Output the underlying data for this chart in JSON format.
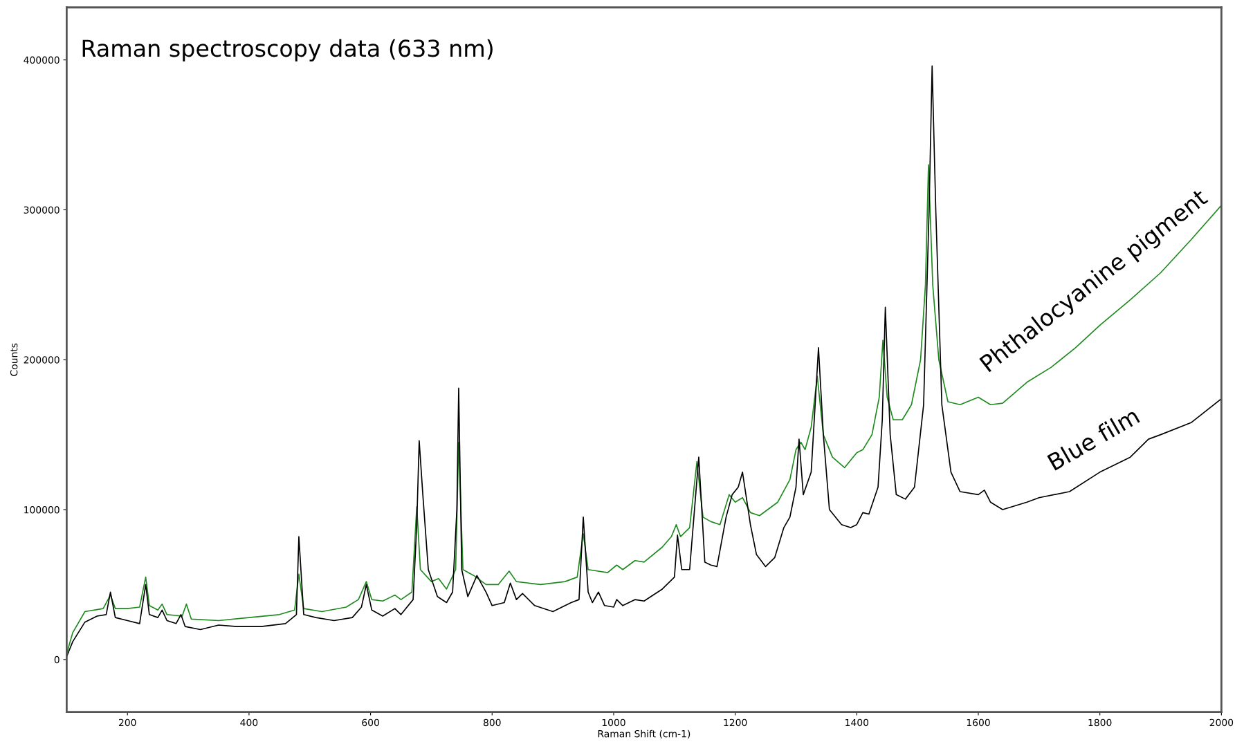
{
  "chart_data": {
    "type": "line",
    "title": "Raman spectroscopy data (633 nm)",
    "xlabel": "Raman Shift (cm-1)",
    "ylabel": "Counts",
    "xlim": [
      100,
      2000
    ],
    "xticks": [
      200,
      400,
      600,
      800,
      1000,
      1200,
      1400,
      1600,
      1800,
      2000
    ],
    "ylim": [
      -35000,
      435000
    ],
    "yticks": [
      0,
      100000,
      200000,
      300000,
      400000
    ],
    "grid": false,
    "legend": false,
    "marker": "none",
    "line_style": "solid",
    "series": [
      {
        "name": "Phthalocyanine pigment",
        "color": "#1f8a1f",
        "x": [
          100,
          110,
          130,
          160,
          172,
          180,
          200,
          220,
          230,
          236,
          250,
          257,
          265,
          290,
          297,
          305,
          350,
          400,
          450,
          475,
          482,
          490,
          520,
          560,
          580,
          593,
          602,
          620,
          640,
          650,
          668,
          676,
          682,
          700,
          712,
          725,
          740,
          745,
          752,
          770,
          790,
          810,
          828,
          840,
          880,
          920,
          940,
          950,
          958,
          990,
          1005,
          1015,
          1035,
          1050,
          1080,
          1095,
          1103,
          1110,
          1125,
          1137,
          1147,
          1160,
          1175,
          1190,
          1200,
          1212,
          1225,
          1240,
          1270,
          1290,
          1300,
          1308,
          1315,
          1325,
          1335,
          1345,
          1360,
          1380,
          1400,
          1410,
          1425,
          1437,
          1443,
          1450,
          1460,
          1475,
          1490,
          1505,
          1513,
          1518,
          1525,
          1535,
          1550,
          1570,
          1600,
          1620,
          1640,
          1680,
          1720,
          1760,
          1800,
          1850,
          1900,
          1950,
          2000
        ],
        "values": [
          4000,
          18000,
          32000,
          34000,
          43000,
          34000,
          34000,
          35000,
          55000,
          36000,
          33000,
          37000,
          30000,
          29000,
          37000,
          27000,
          26000,
          28000,
          30000,
          33000,
          57000,
          34000,
          32000,
          35000,
          40000,
          52000,
          40000,
          39000,
          43000,
          40000,
          45000,
          102000,
          60000,
          52000,
          54000,
          47000,
          60000,
          145000,
          60000,
          56000,
          50000,
          50000,
          59000,
          52000,
          50000,
          52000,
          55000,
          84000,
          60000,
          58000,
          63000,
          60000,
          66000,
          65000,
          75000,
          82000,
          90000,
          82000,
          88000,
          132000,
          95000,
          92000,
          90000,
          110000,
          105000,
          108000,
          98000,
          96000,
          105000,
          120000,
          140000,
          145000,
          140000,
          155000,
          189000,
          150000,
          135000,
          128000,
          138000,
          140000,
          150000,
          175000,
          213000,
          175000,
          160000,
          160000,
          170000,
          200000,
          250000,
          330000,
          250000,
          200000,
          172000,
          170000,
          175000,
          170000,
          171000,
          185000,
          195000,
          208000,
          223000,
          240000,
          258000,
          280000,
          303000
        ]
      },
      {
        "name": "Blue film",
        "color": "#000000",
        "x": [
          100,
          110,
          130,
          150,
          165,
          172,
          180,
          200,
          220,
          230,
          236,
          250,
          257,
          265,
          280,
          288,
          295,
          320,
          350,
          380,
          420,
          460,
          478,
          482,
          490,
          510,
          540,
          570,
          585,
          593,
          602,
          620,
          640,
          650,
          670,
          676,
          680,
          686,
          695,
          710,
          725,
          735,
          742,
          745,
          750,
          760,
          775,
          790,
          800,
          820,
          830,
          840,
          850,
          870,
          900,
          930,
          943,
          950,
          958,
          965,
          975,
          985,
          1000,
          1005,
          1015,
          1035,
          1050,
          1080,
          1100,
          1105,
          1112,
          1125,
          1140,
          1150,
          1160,
          1170,
          1185,
          1195,
          1205,
          1212,
          1225,
          1235,
          1250,
          1265,
          1280,
          1290,
          1300,
          1305,
          1312,
          1325,
          1337,
          1345,
          1355,
          1375,
          1390,
          1400,
          1410,
          1420,
          1435,
          1442,
          1447,
          1455,
          1465,
          1480,
          1495,
          1510,
          1519,
          1524,
          1530,
          1540,
          1555,
          1570,
          1600,
          1610,
          1620,
          1640,
          1680,
          1700,
          1750,
          1800,
          1850,
          1880,
          1900,
          1950,
          2000
        ],
        "values": [
          2000,
          12000,
          25000,
          29000,
          30000,
          45000,
          28000,
          26000,
          24000,
          50000,
          30000,
          28000,
          33000,
          26000,
          24000,
          30000,
          22000,
          20000,
          23000,
          22000,
          22000,
          24000,
          30000,
          82000,
          30000,
          28000,
          26000,
          28000,
          35000,
          50000,
          33000,
          29000,
          34000,
          30000,
          40000,
          90000,
          146000,
          110000,
          60000,
          42000,
          38000,
          45000,
          100000,
          181000,
          60000,
          42000,
          56000,
          45000,
          36000,
          38000,
          51000,
          40000,
          44000,
          36000,
          32000,
          38000,
          40000,
          95000,
          45000,
          38000,
          45000,
          36000,
          35000,
          40000,
          36000,
          40000,
          39000,
          47000,
          55000,
          83000,
          60000,
          60000,
          135000,
          65000,
          63000,
          62000,
          95000,
          110000,
          115000,
          125000,
          90000,
          70000,
          62000,
          68000,
          88000,
          95000,
          115000,
          147000,
          110000,
          125000,
          208000,
          150000,
          100000,
          90000,
          88000,
          90000,
          98000,
          97000,
          115000,
          160000,
          235000,
          150000,
          110000,
          107000,
          115000,
          170000,
          300000,
          396000,
          300000,
          170000,
          125000,
          112000,
          110000,
          113000,
          105000,
          100000,
          105000,
          108000,
          112000,
          125000,
          135000,
          147000,
          150000,
          158000,
          174000
        ]
      }
    ]
  }
}
